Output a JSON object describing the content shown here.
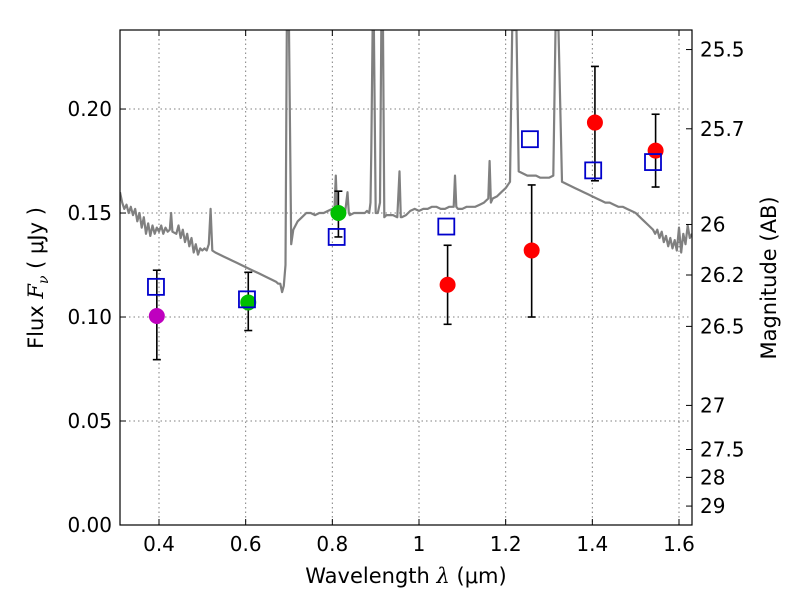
{
  "chart_data": {
    "type": "scatter",
    "title": "",
    "xlabel": {
      "prefix": "Wavelength  ",
      "symbol": "λ",
      "unit": " (μm)"
    },
    "ylabel": {
      "prefix": "Flux  ",
      "symbol": "F",
      "subscript": "ν",
      "unit": "  ( μJy )"
    },
    "y2label": "Magnitude (AB)",
    "xlim": [
      0.31,
      1.63
    ],
    "ylim": [
      0.0,
      0.238
    ],
    "grid": true,
    "x_ticks": [
      {
        "value": 0.4,
        "label": "0.4"
      },
      {
        "value": 0.6,
        "label": "0.6"
      },
      {
        "value": 0.8,
        "label": "0.8"
      },
      {
        "value": 1.0,
        "label": "1"
      },
      {
        "value": 1.2,
        "label": "1.2"
      },
      {
        "value": 1.4,
        "label": "1.4"
      },
      {
        "value": 1.6,
        "label": "1.6"
      }
    ],
    "y_ticks": [
      {
        "value": 0.0,
        "label": "0.00"
      },
      {
        "value": 0.05,
        "label": "0.05"
      },
      {
        "value": 0.1,
        "label": "0.10"
      },
      {
        "value": 0.15,
        "label": "0.15"
      },
      {
        "value": 0.2,
        "label": "0.20"
      }
    ],
    "y2_ticks": [
      {
        "flux": 0.2286,
        "label": "25.5"
      },
      {
        "flux": 0.1905,
        "label": "25.7"
      },
      {
        "flux": 0.1445,
        "label": "26"
      },
      {
        "flux": 0.1202,
        "label": "26.2"
      },
      {
        "flux": 0.0955,
        "label": "26.5"
      },
      {
        "flux": 0.0575,
        "label": "27"
      },
      {
        "flux": 0.0363,
        "label": "27.5"
      },
      {
        "flux": 0.0229,
        "label": "28"
      },
      {
        "flux": 0.0091,
        "label": "29"
      }
    ],
    "observed": [
      {
        "x": 0.395,
        "y": 0.1005,
        "yerr_low": 0.0795,
        "yerr_high": 0.1225,
        "color": "#bf00bf"
      },
      {
        "x": 0.606,
        "y": 0.107,
        "yerr_low": 0.0935,
        "yerr_high": 0.1215,
        "color": "#00bf00"
      },
      {
        "x": 0.814,
        "y": 0.15,
        "yerr_low": 0.1385,
        "yerr_high": 0.1605,
        "color": "#00bf00"
      },
      {
        "x": 1.066,
        "y": 0.1155,
        "yerr_low": 0.0965,
        "yerr_high": 0.1345,
        "color": "#ff0000"
      },
      {
        "x": 1.26,
        "y": 0.132,
        "yerr_low": 0.1,
        "yerr_high": 0.1635,
        "color": "#ff0000"
      },
      {
        "x": 1.406,
        "y": 0.1935,
        "yerr_low": 0.1655,
        "yerr_high": 0.2205,
        "color": "#ff0000"
      },
      {
        "x": 1.546,
        "y": 0.18,
        "yerr_low": 0.1625,
        "yerr_high": 0.1975,
        "color": "#ff0000"
      }
    ],
    "model_points": [
      {
        "x": 0.393,
        "y": 0.1145
      },
      {
        "x": 0.603,
        "y": 0.1085
      },
      {
        "x": 0.81,
        "y": 0.1385
      },
      {
        "x": 1.063,
        "y": 0.1435
      },
      {
        "x": 1.256,
        "y": 0.1855
      },
      {
        "x": 1.402,
        "y": 0.1705
      },
      {
        "x": 1.54,
        "y": 0.1745
      }
    ],
    "spectrum": [
      [
        0.31,
        0.16
      ],
      [
        0.315,
        0.155
      ],
      [
        0.32,
        0.152
      ],
      [
        0.325,
        0.154
      ],
      [
        0.33,
        0.15
      ],
      [
        0.335,
        0.153
      ],
      [
        0.34,
        0.149
      ],
      [
        0.345,
        0.152
      ],
      [
        0.35,
        0.146
      ],
      [
        0.355,
        0.15
      ],
      [
        0.36,
        0.143
      ],
      [
        0.365,
        0.148
      ],
      [
        0.37,
        0.14
      ],
      [
        0.375,
        0.145
      ],
      [
        0.38,
        0.139
      ],
      [
        0.385,
        0.144
      ],
      [
        0.39,
        0.14
      ],
      [
        0.395,
        0.143
      ],
      [
        0.4,
        0.141
      ],
      [
        0.405,
        0.144
      ],
      [
        0.41,
        0.14
      ],
      [
        0.415,
        0.143
      ],
      [
        0.42,
        0.141
      ],
      [
        0.425,
        0.142
      ],
      [
        0.428,
        0.15
      ],
      [
        0.431,
        0.141
      ],
      [
        0.44,
        0.14
      ],
      [
        0.445,
        0.144
      ],
      [
        0.45,
        0.138
      ],
      [
        0.455,
        0.142
      ],
      [
        0.46,
        0.136
      ],
      [
        0.465,
        0.14
      ],
      [
        0.47,
        0.134
      ],
      [
        0.475,
        0.138
      ],
      [
        0.48,
        0.131
      ],
      [
        0.485,
        0.135
      ],
      [
        0.49,
        0.13
      ],
      [
        0.495,
        0.133
      ],
      [
        0.5,
        0.132
      ],
      [
        0.505,
        0.133
      ],
      [
        0.51,
        0.132
      ],
      [
        0.515,
        0.135
      ],
      [
        0.519,
        0.152
      ],
      [
        0.523,
        0.132
      ],
      [
        0.53,
        0.131
      ],
      [
        0.54,
        0.13
      ],
      [
        0.55,
        0.129
      ],
      [
        0.56,
        0.128
      ],
      [
        0.57,
        0.127
      ],
      [
        0.58,
        0.126
      ],
      [
        0.59,
        0.125
      ],
      [
        0.6,
        0.124
      ],
      [
        0.61,
        0.123
      ],
      [
        0.62,
        0.122
      ],
      [
        0.63,
        0.121
      ],
      [
        0.64,
        0.12
      ],
      [
        0.65,
        0.119
      ],
      [
        0.66,
        0.118
      ],
      [
        0.67,
        0.117
      ],
      [
        0.675,
        0.116
      ],
      [
        0.68,
        0.116
      ],
      [
        0.684,
        0.112
      ],
      [
        0.688,
        0.115
      ],
      [
        0.692,
        0.125
      ],
      [
        0.695,
        0.238
      ],
      [
        0.7,
        0.238
      ],
      [
        0.705,
        0.135
      ],
      [
        0.71,
        0.142
      ],
      [
        0.72,
        0.146
      ],
      [
        0.73,
        0.148
      ],
      [
        0.74,
        0.15
      ],
      [
        0.75,
        0.15
      ],
      [
        0.76,
        0.149
      ],
      [
        0.77,
        0.15
      ],
      [
        0.78,
        0.15
      ],
      [
        0.79,
        0.151
      ],
      [
        0.8,
        0.152
      ],
      [
        0.805,
        0.152
      ],
      [
        0.808,
        0.168
      ],
      [
        0.811,
        0.151
      ],
      [
        0.82,
        0.15
      ],
      [
        0.83,
        0.151
      ],
      [
        0.835,
        0.16
      ],
      [
        0.838,
        0.15
      ],
      [
        0.84,
        0.149
      ],
      [
        0.85,
        0.15
      ],
      [
        0.86,
        0.15
      ],
      [
        0.87,
        0.15
      ],
      [
        0.875,
        0.15
      ],
      [
        0.88,
        0.151
      ],
      [
        0.885,
        0.15
      ],
      [
        0.888,
        0.155
      ],
      [
        0.89,
        0.18
      ],
      [
        0.893,
        0.238
      ],
      [
        0.896,
        0.238
      ],
      [
        0.9,
        0.15
      ],
      [
        0.905,
        0.15
      ],
      [
        0.91,
        0.155
      ],
      [
        0.913,
        0.238
      ],
      [
        0.917,
        0.238
      ],
      [
        0.92,
        0.148
      ],
      [
        0.925,
        0.149
      ],
      [
        0.93,
        0.149
      ],
      [
        0.94,
        0.149
      ],
      [
        0.95,
        0.148
      ],
      [
        0.955,
        0.17
      ],
      [
        0.958,
        0.148
      ],
      [
        0.96,
        0.148
      ],
      [
        0.97,
        0.149
      ],
      [
        0.98,
        0.151
      ],
      [
        0.99,
        0.152
      ],
      [
        1.0,
        0.151
      ],
      [
        1.01,
        0.152
      ],
      [
        1.02,
        0.152
      ],
      [
        1.03,
        0.153
      ],
      [
        1.04,
        0.153
      ],
      [
        1.05,
        0.152
      ],
      [
        1.06,
        0.152
      ],
      [
        1.07,
        0.153
      ],
      [
        1.08,
        0.153
      ],
      [
        1.083,
        0.168
      ],
      [
        1.086,
        0.153
      ],
      [
        1.09,
        0.152
      ],
      [
        1.1,
        0.152
      ],
      [
        1.11,
        0.153
      ],
      [
        1.12,
        0.153
      ],
      [
        1.13,
        0.153
      ],
      [
        1.14,
        0.154
      ],
      [
        1.15,
        0.155
      ],
      [
        1.16,
        0.157
      ],
      [
        1.163,
        0.175
      ],
      [
        1.166,
        0.155
      ],
      [
        1.17,
        0.157
      ],
      [
        1.18,
        0.158
      ],
      [
        1.19,
        0.16
      ],
      [
        1.2,
        0.162
      ],
      [
        1.21,
        0.165
      ],
      [
        1.215,
        0.238
      ],
      [
        1.225,
        0.238
      ],
      [
        1.23,
        0.17
      ],
      [
        1.24,
        0.169
      ],
      [
        1.25,
        0.168
      ],
      [
        1.26,
        0.168
      ],
      [
        1.27,
        0.168
      ],
      [
        1.28,
        0.167
      ],
      [
        1.29,
        0.167
      ],
      [
        1.3,
        0.167
      ],
      [
        1.31,
        0.168
      ],
      [
        1.315,
        0.238
      ],
      [
        1.322,
        0.238
      ],
      [
        1.33,
        0.165
      ],
      [
        1.34,
        0.164
      ],
      [
        1.35,
        0.163
      ],
      [
        1.36,
        0.162
      ],
      [
        1.37,
        0.161
      ],
      [
        1.38,
        0.16
      ],
      [
        1.39,
        0.159
      ],
      [
        1.4,
        0.158
      ],
      [
        1.41,
        0.157
      ],
      [
        1.42,
        0.156
      ],
      [
        1.43,
        0.155
      ],
      [
        1.44,
        0.155
      ],
      [
        1.45,
        0.154
      ],
      [
        1.46,
        0.153
      ],
      [
        1.47,
        0.153
      ],
      [
        1.48,
        0.152
      ],
      [
        1.49,
        0.151
      ],
      [
        1.5,
        0.15
      ],
      [
        1.51,
        0.148
      ],
      [
        1.52,
        0.146
      ],
      [
        1.53,
        0.144
      ],
      [
        1.54,
        0.142
      ],
      [
        1.545,
        0.14
      ],
      [
        1.55,
        0.142
      ],
      [
        1.555,
        0.138
      ],
      [
        1.56,
        0.141
      ],
      [
        1.565,
        0.136
      ],
      [
        1.57,
        0.139
      ],
      [
        1.575,
        0.134
      ],
      [
        1.58,
        0.138
      ],
      [
        1.585,
        0.133
      ],
      [
        1.59,
        0.137
      ],
      [
        1.595,
        0.132
      ],
      [
        1.6,
        0.143
      ],
      [
        1.605,
        0.131
      ],
      [
        1.61,
        0.14
      ],
      [
        1.615,
        0.135
      ],
      [
        1.62,
        0.144
      ],
      [
        1.625,
        0.138
      ],
      [
        1.63,
        0.14
      ]
    ],
    "colors": {
      "spectrum": "#808080",
      "model_box": "#0000cc",
      "errorbar": "#000000",
      "grid": "#7f7f7f",
      "axes": "#000000"
    }
  }
}
